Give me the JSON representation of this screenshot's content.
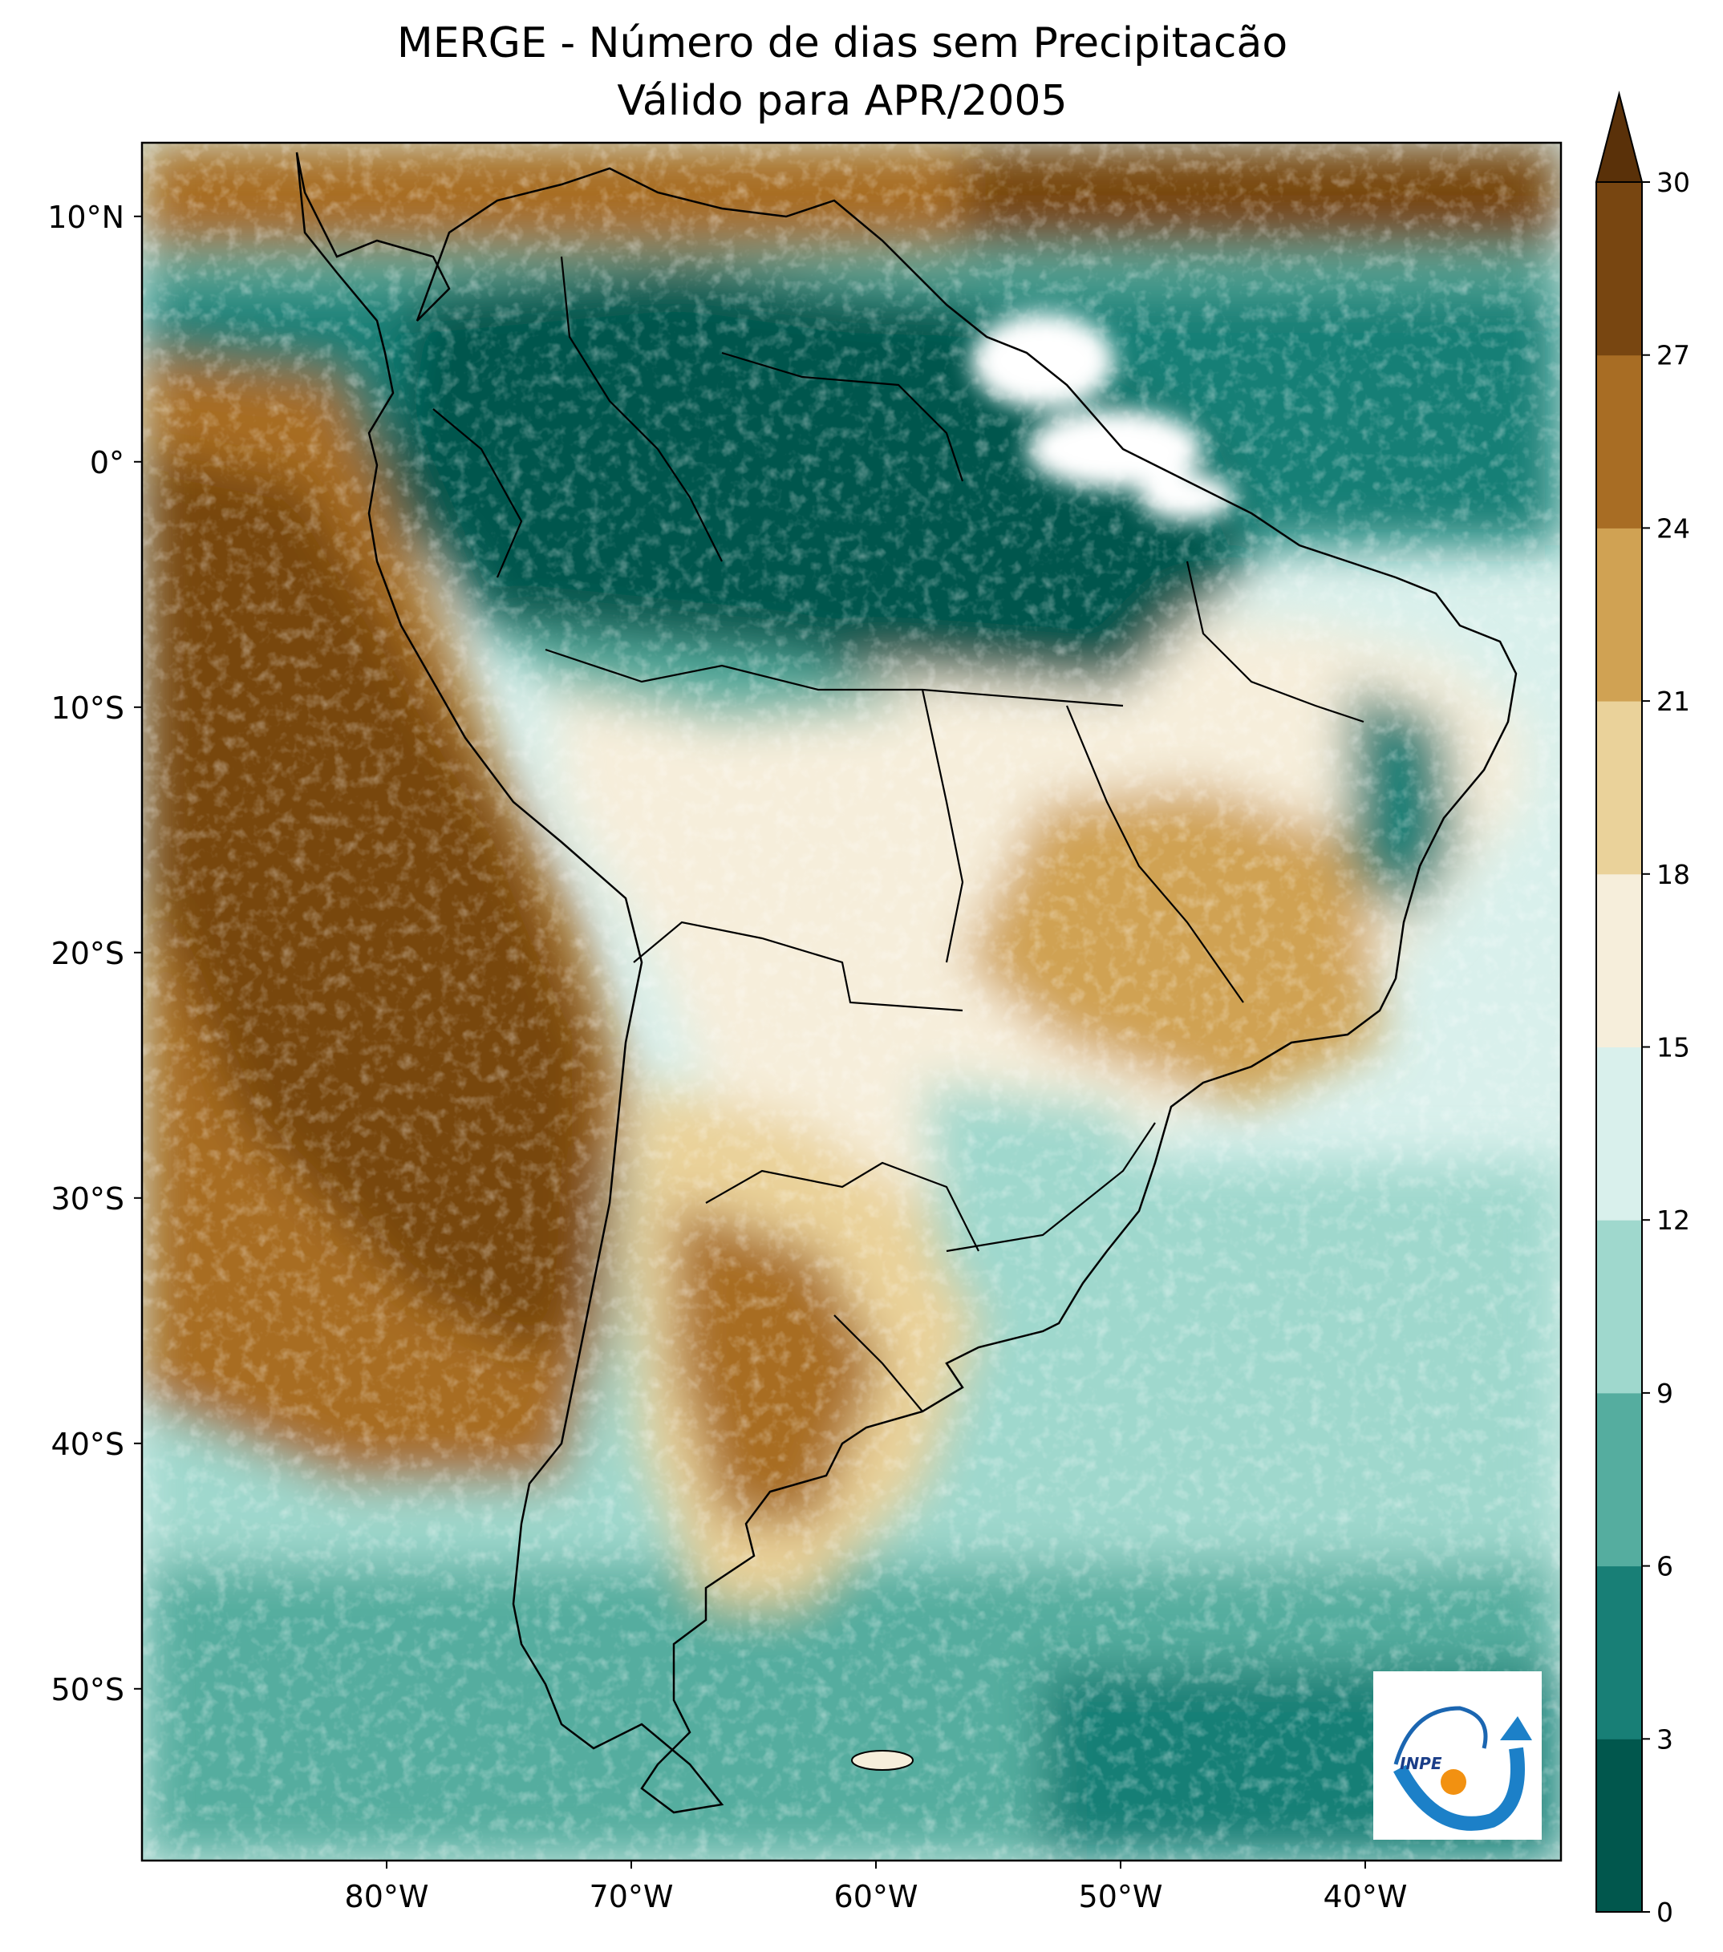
{
  "title": {
    "line1": "MERGE - Número de dias sem Precipitacão",
    "line2": "Válido para APR/2005"
  },
  "map": {
    "lat_labels": [
      "10°N",
      "0°",
      "10°S",
      "20°S",
      "30°S",
      "40°S",
      "50°S"
    ],
    "lat_values": [
      10,
      0,
      -10,
      -20,
      -30,
      -40,
      -50
    ],
    "lon_labels": [
      "80°W",
      "70°W",
      "60°W",
      "50°W",
      "40°W"
    ],
    "lon_values": [
      -80,
      -70,
      -60,
      -50,
      -40
    ],
    "extent": {
      "lon": [
        -90,
        -32
      ],
      "lat": [
        -57,
        13
      ]
    },
    "logo_text": "INPE"
  },
  "colorbar": {
    "ticks": [
      "0",
      "3",
      "6",
      "9",
      "12",
      "15",
      "18",
      "21",
      "24",
      "27",
      "30"
    ],
    "colors": [
      "#01574d",
      "#187f76",
      "#55ad9f",
      "#9fd8cd",
      "#d9f0ec",
      "#f6eedb",
      "#ead29a",
      "#d0a253",
      "#a86d24",
      "#784611"
    ],
    "extend_color": "#5a3109",
    "extend": "max"
  },
  "colors": {
    "ocean_pacific_dry": "#8a5418",
    "land_wet": "#1b7d72",
    "coast": "#000000"
  }
}
